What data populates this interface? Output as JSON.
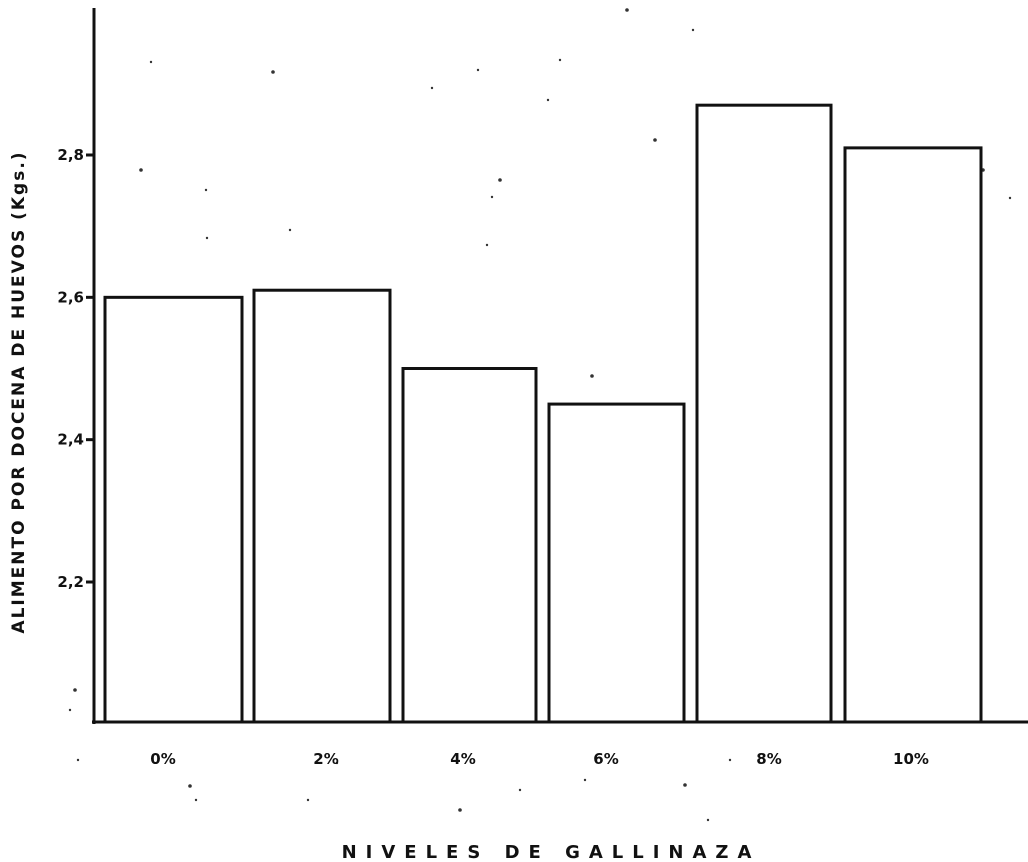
{
  "chart_data": {
    "type": "bar",
    "categories": [
      "0%",
      "2%",
      "4%",
      "6%",
      "8%",
      "10%"
    ],
    "values": [
      2.6,
      2.61,
      2.5,
      2.45,
      2.87,
      2.81
    ],
    "xlabel": "NIVELES DE GALLINAZA",
    "ylabel": "ALIMENTO POR DOCENA DE HUEVOS (Kgs.)",
    "ylim": [
      2.0,
      3.0
    ],
    "yticks": [
      2.2,
      2.4,
      2.6,
      2.8
    ],
    "ytick_labels": [
      "2,2",
      "2,4",
      "2,6",
      "2,8"
    ],
    "grid": false,
    "legend": "none",
    "colors": {
      "bar_fill": "#ffffff",
      "stroke": "#111111"
    }
  }
}
